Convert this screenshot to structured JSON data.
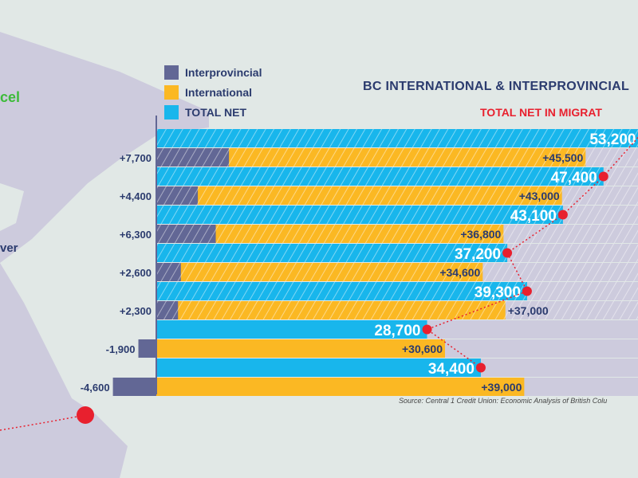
{
  "map": {
    "label_top": "cel",
    "label_mid": "ver"
  },
  "legend": [
    {
      "label": "Interprovincial",
      "color": "#626795"
    },
    {
      "label": "International",
      "color": "#fbb823"
    },
    {
      "label": "TOTAL NET",
      "color": "#18b6ec"
    }
  ],
  "title": "BC INTERNATIONAL & INTERPROVINCIAL",
  "subtitle": "TOTAL NET IN MIGRAT",
  "source": "Source: Central 1 Credit Union: Economic Analysis of British Colu",
  "chart_data": {
    "type": "bar",
    "title": "BC INTERNATIONAL & INTERPROVINCIAL",
    "subtitle": "TOTAL NET IN MIGRAT",
    "series": [
      {
        "name": "Interprovincial",
        "values": [
          7700,
          4400,
          6300,
          2600,
          2300,
          -1900,
          -4600
        ],
        "labels": [
          "+7,700",
          "+4,400",
          "+6,300",
          "+2,600",
          "+2,300",
          "-1,900",
          "-4,600"
        ]
      },
      {
        "name": "International",
        "values": [
          45500,
          43000,
          36800,
          34600,
          37000,
          30600,
          39000
        ],
        "labels": [
          "+45,500",
          "+43,000",
          "+36,800",
          "+34,600",
          "+37,000",
          "+30,600",
          "+39,000"
        ]
      },
      {
        "name": "TOTAL NET",
        "values": [
          53200,
          47400,
          43100,
          37200,
          39300,
          28700,
          34400
        ],
        "labels": [
          "53,200",
          "47,400",
          "43,100",
          "37,200",
          "39,300",
          "28,700",
          "34,400"
        ]
      }
    ],
    "hatched": [
      true,
      true,
      true,
      true,
      true,
      false,
      false
    ],
    "legend": "top-left"
  }
}
